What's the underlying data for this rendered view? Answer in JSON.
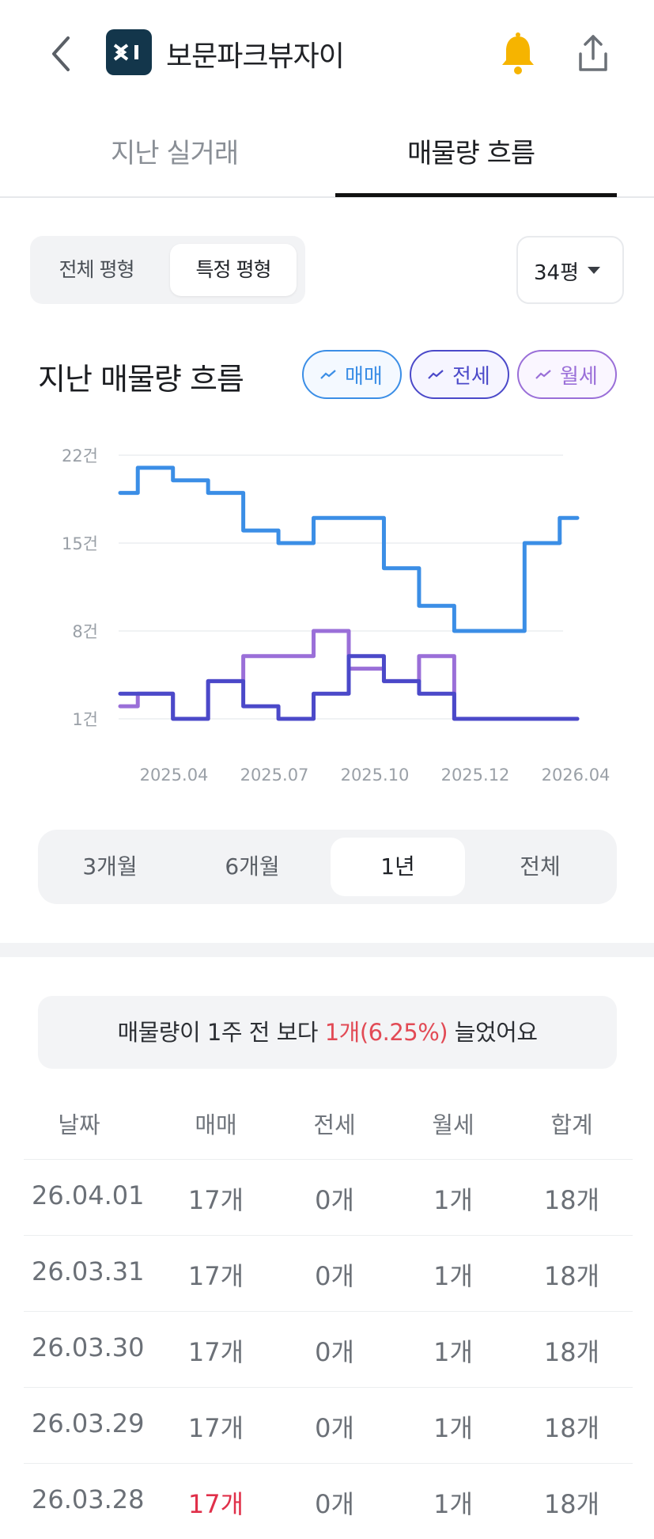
{
  "header": {
    "title": "보문파크뷰자이",
    "logo_text": "X1"
  },
  "tabs": [
    {
      "label": "지난 실거래",
      "active": false
    },
    {
      "label": "매물량 흐름",
      "active": true
    }
  ],
  "size_filter": {
    "options": [
      "전체 평형",
      "특정 평형"
    ],
    "selected": "특정 평형",
    "size_value": "34평"
  },
  "section": {
    "title": "지난 매물량 흐름",
    "legend": [
      "매매",
      "전세",
      "월세"
    ]
  },
  "colors": {
    "sale": "#3b8ee6",
    "jeonse": "#4b49c9",
    "wolse": "#9a6fd8",
    "highlight": "#e24a55"
  },
  "chart_data": {
    "type": "line",
    "y_ticks": [
      "22건",
      "15건",
      "8건",
      "1건"
    ],
    "ylim": [
      1,
      22
    ],
    "x_ticks": [
      "2025.04",
      "2025.07",
      "2025.10",
      "2025.12",
      "2026.04"
    ],
    "x": [
      "2025-03",
      "2025-04",
      "2025-05",
      "2025-06",
      "2025-07",
      "2025-08",
      "2025-09",
      "2025-10",
      "2025-11",
      "2025-12",
      "2026-01",
      "2026-02",
      "2026-03",
      "2026-04"
    ],
    "series": [
      {
        "name": "매매",
        "values": [
          19,
          21,
          20,
          19,
          16,
          15,
          17,
          17,
          13,
          10,
          8,
          8,
          15,
          17
        ]
      },
      {
        "name": "전세",
        "values": [
          3,
          3,
          1,
          4,
          2,
          1,
          3,
          6,
          4,
          3,
          1,
          1,
          1,
          1
        ]
      },
      {
        "name": "월세",
        "values": [
          2,
          3,
          1,
          4,
          6,
          6,
          8,
          5,
          4,
          6,
          1,
          1,
          1,
          1
        ]
      }
    ]
  },
  "period": {
    "options": [
      "3개월",
      "6개월",
      "1년",
      "전체"
    ],
    "selected": "1년"
  },
  "summary": {
    "prefix": "매물량이 1주 전 보다 ",
    "highlight": "1개(6.25%)",
    "suffix": " 늘었어요"
  },
  "table": {
    "headers": [
      "날짜",
      "매매",
      "전세",
      "월세",
      "합계"
    ],
    "rows": [
      {
        "date": "26.04.01",
        "sale": "17개",
        "jeonse": "0개",
        "wolse": "1개",
        "total": "18개"
      },
      {
        "date": "26.03.31",
        "sale": "17개",
        "jeonse": "0개",
        "wolse": "1개",
        "total": "18개"
      },
      {
        "date": "26.03.30",
        "sale": "17개",
        "jeonse": "0개",
        "wolse": "1개",
        "total": "18개"
      },
      {
        "date": "26.03.29",
        "sale": "17개",
        "jeonse": "0개",
        "wolse": "1개",
        "total": "18개"
      },
      {
        "date": "26.03.28",
        "sale": "17개",
        "jeonse": "0개",
        "wolse": "1개",
        "total": "18개"
      }
    ]
  }
}
